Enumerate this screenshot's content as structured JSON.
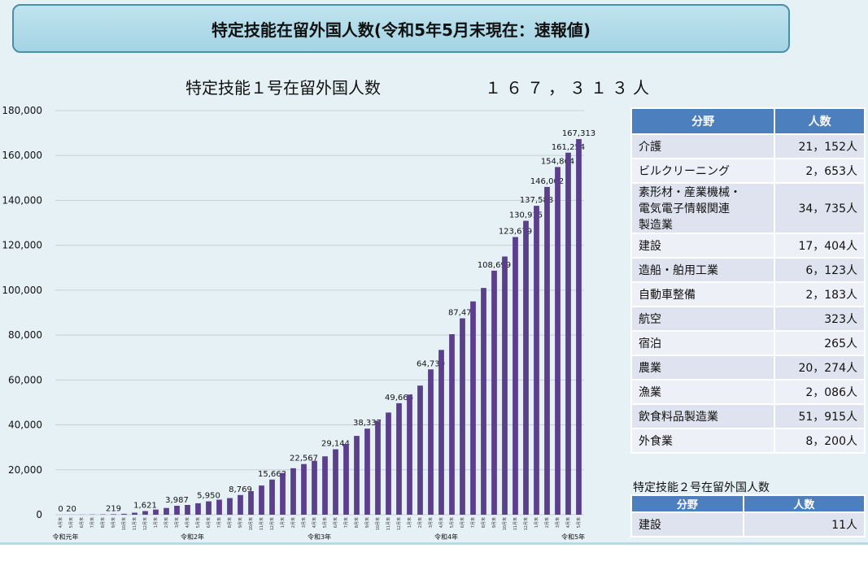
{
  "header": {
    "title": "特定技能在留外国人数(令和5年5月末現在：速報値)"
  },
  "chart_heading": {
    "title": "特定技能１号在留外国人数",
    "total": "１６７，３１３人"
  },
  "chart_data": {
    "type": "bar",
    "ylim": [
      0,
      180000
    ],
    "yticks": [
      "0",
      "20,000",
      "40,000",
      "60,000",
      "80,000",
      "100,000",
      "120,000",
      "140,000",
      "160,000",
      "180,000"
    ],
    "grid": true,
    "bar_color": "#5b3f8c",
    "categories": [
      "4月末",
      "5月末",
      "6月末",
      "7月末",
      "8月末",
      "9月末",
      "10月末",
      "11月末",
      "12月末",
      "1月末",
      "2月末",
      "3月末",
      "4月末",
      "5月末",
      "6月末",
      "7月末",
      "8月末",
      "9月末",
      "10月末",
      "11月末",
      "12月末",
      "1月末",
      "2月末",
      "3月末",
      "4月末",
      "5月末",
      "6月末",
      "7月末",
      "8月末",
      "9月末",
      "10月末",
      "11月末",
      "12月末",
      "1月末",
      "2月末",
      "3月末",
      "4月末",
      "5月末",
      "6月末",
      "7月末",
      "8月末",
      "9月末",
      "10月末",
      "11月末",
      "12月末",
      "1月末",
      "2月末",
      "3月末",
      "4月末",
      "5月末"
    ],
    "values": [
      0,
      20,
      50,
      100,
      150,
      219,
      400,
      895,
      1621,
      2300,
      2994,
      3987,
      4350,
      5100,
      5950,
      6700,
      7400,
      8769,
      10500,
      13000,
      15663,
      18600,
      20700,
      22567,
      24000,
      26000,
      29144,
      31500,
      35100,
      38337,
      41800,
      45500,
      49666,
      53500,
      57500,
      64730,
      73400,
      80400,
      87471,
      95000,
      101000,
      108699,
      115000,
      123679,
      130915,
      137588,
      146002,
      154864,
      161254,
      167313
    ],
    "value_labels": [
      "0",
      "20",
      "",
      "",
      "",
      "219",
      "",
      "",
      "1,621",
      "",
      "",
      "3,987",
      "",
      "",
      "5,950",
      "",
      "",
      "8,769",
      "",
      "",
      "15,663",
      "",
      "",
      "22,567",
      "",
      "",
      "29,144",
      "",
      "",
      "38,337",
      "",
      "",
      "49,666",
      "",
      "",
      "64,730",
      "",
      "",
      "87,471",
      "",
      "",
      "108,699",
      "",
      "123,679",
      "130,915",
      "137,588",
      "146,002",
      "154,864",
      "161,254",
      "167,313"
    ],
    "era_labels": [
      {
        "index": 0,
        "text": "令和元年"
      },
      {
        "index": 12,
        "text": "令和2年"
      },
      {
        "index": 24,
        "text": "令和3年"
      },
      {
        "index": 36,
        "text": "令和4年"
      },
      {
        "index": 48,
        "text": "令和5年"
      }
    ]
  },
  "table1": {
    "headers": [
      "分野",
      "人数"
    ],
    "rows": [
      {
        "field": [
          "介護"
        ],
        "count": "21，152人"
      },
      {
        "field": [
          "ビルクリーニング"
        ],
        "count": "2，653人"
      },
      {
        "field": [
          "素形材・産業機械・",
          "電気電子情報関連",
          "製造業"
        ],
        "count": "34，735人"
      },
      {
        "field": [
          "建設"
        ],
        "count": "17，404人"
      },
      {
        "field": [
          "造船・舶用工業"
        ],
        "count": "6，123人"
      },
      {
        "field": [
          "自動車整備"
        ],
        "count": "2，183人"
      },
      {
        "field": [
          "航空"
        ],
        "count": "323人"
      },
      {
        "field": [
          "宿泊"
        ],
        "count": "265人"
      },
      {
        "field": [
          "農業"
        ],
        "count": "20，274人"
      },
      {
        "field": [
          "漁業"
        ],
        "count": "2，086人"
      },
      {
        "field": [
          "飲食料品製造業"
        ],
        "count": "51，915人"
      },
      {
        "field": [
          "外食業"
        ],
        "count": "8，200人"
      }
    ]
  },
  "table2": {
    "title": "特定技能２号在留外国人数",
    "headers": [
      "分野",
      "人数"
    ],
    "rows": [
      {
        "field": [
          "建設"
        ],
        "count": "11人"
      }
    ]
  }
}
